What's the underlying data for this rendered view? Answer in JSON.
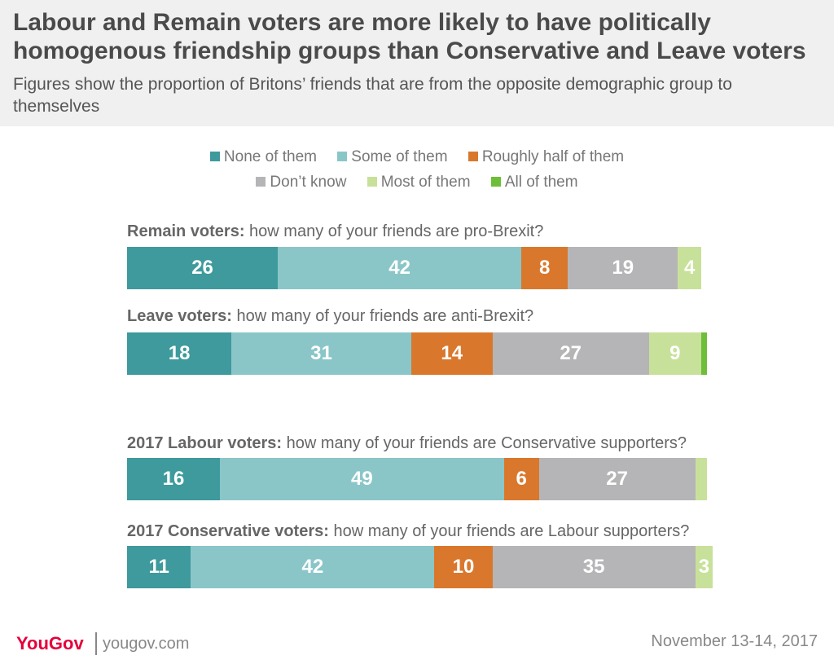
{
  "header": {
    "title": "Labour and Remain voters are more likely to have politically homogenous friendship groups than Conservative and Leave voters",
    "subtitle": "Figures show the proportion of Britons’ friends that are from the opposite demographic group to themselves"
  },
  "colors": {
    "none": "#3e9a9c",
    "some": "#8ac6c8",
    "half": "#d9782d",
    "dont_know": "#b5b5b7",
    "most": "#c8e19a",
    "all": "#6ebe3a",
    "brand": "#e4003b"
  },
  "chart_data": {
    "type": "bar",
    "stacked": true,
    "orientation": "horizontal",
    "legend": [
      "None of them",
      "Some of them",
      "Roughly half of them",
      "Don’t know",
      "Most of them",
      "All of them"
    ],
    "legend_placement": "top",
    "bars": [
      {
        "bold": "Remain voters:",
        "rest": " how many of your friends are pro-Brexit?",
        "values": [
          26,
          42,
          8,
          19,
          4,
          0
        ],
        "labels": [
          "26",
          "42",
          "8",
          "19",
          "4",
          ""
        ]
      },
      {
        "bold": "Leave voters:",
        "rest": " how many of your friends are anti-Brexit?",
        "values": [
          18,
          31,
          14,
          27,
          9,
          1
        ],
        "labels": [
          "18",
          "31",
          "14",
          "27",
          "9",
          ""
        ]
      },
      {
        "bold": "2017 Labour voters:",
        "rest": " how many of your friends are Conservative supporters?",
        "values": [
          16,
          49,
          6,
          27,
          2,
          0
        ],
        "labels": [
          "16",
          "49",
          "6",
          "27",
          "",
          ""
        ]
      },
      {
        "bold": "2017 Conservative voters:",
        "rest": " how many of your friends are Labour supporters?",
        "values": [
          11,
          42,
          10,
          35,
          3,
          0
        ],
        "labels": [
          "11",
          "42",
          "10",
          "35",
          "3",
          ""
        ]
      }
    ]
  },
  "footer": {
    "logo": "YouGov",
    "site": "yougov.com",
    "date": "November 13-14, 2017"
  }
}
